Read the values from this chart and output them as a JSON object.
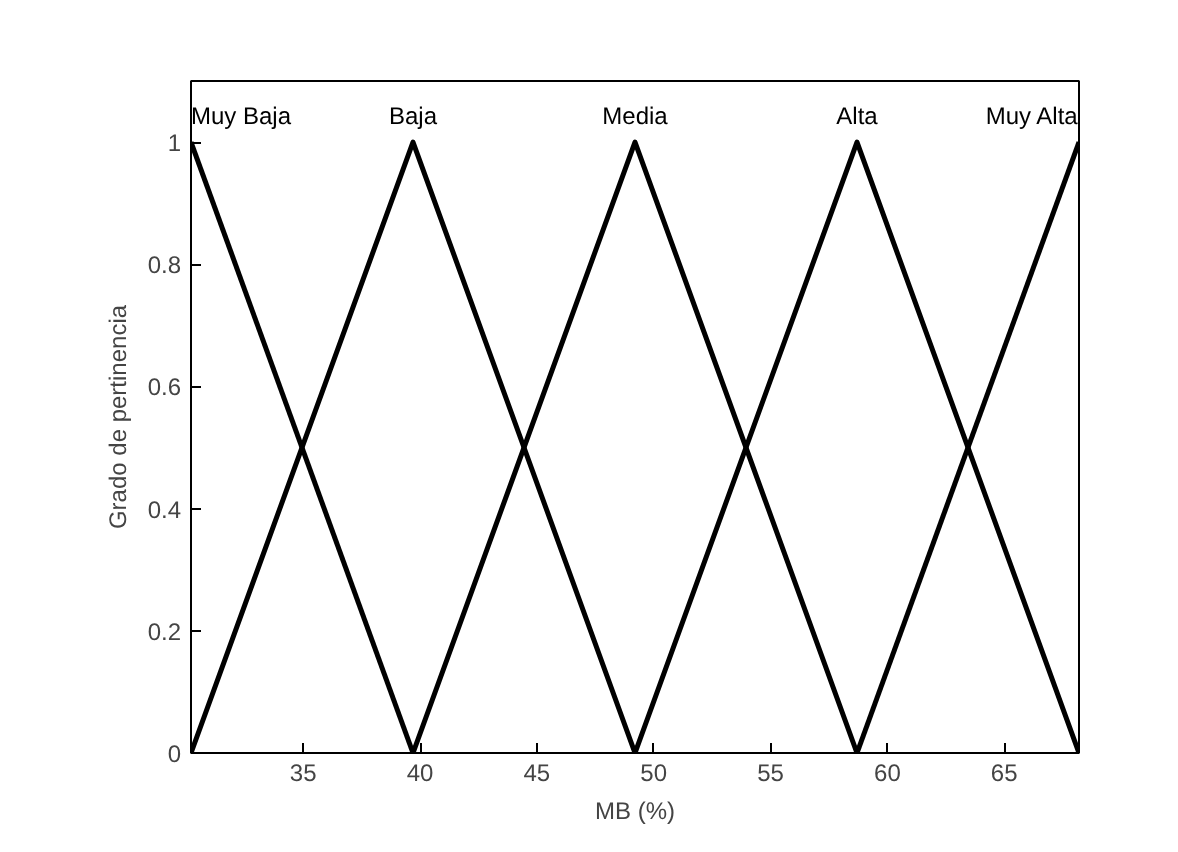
{
  "chart_data": {
    "type": "line",
    "xlabel": "MB (%)",
    "ylabel": "Grado de pertinencia",
    "xlim": [
      30.2,
      68.2
    ],
    "ylim": [
      0,
      1.1
    ],
    "xticks": [
      35,
      40,
      45,
      50,
      55,
      60,
      65
    ],
    "yticks": [
      0,
      0.2,
      0.4,
      0.6,
      0.8,
      1
    ],
    "grid": false,
    "legend": false,
    "marker": "none",
    "line_style": "solid",
    "series": [
      {
        "name": "Muy Baja",
        "color": "#000000",
        "x": [
          30.2,
          39.7
        ],
        "values": [
          1,
          0
        ]
      },
      {
        "name": "Baja",
        "color": "#000000",
        "x": [
          30.2,
          39.7,
          49.2
        ],
        "values": [
          0,
          1,
          0
        ]
      },
      {
        "name": "Media",
        "color": "#000000",
        "x": [
          39.7,
          49.2,
          58.7
        ],
        "values": [
          0,
          1,
          0
        ]
      },
      {
        "name": "Alta",
        "color": "#000000",
        "x": [
          49.2,
          58.7,
          68.2
        ],
        "values": [
          0,
          1,
          0
        ]
      },
      {
        "name": "Muy Alta",
        "color": "#000000",
        "x": [
          58.7,
          68.2
        ],
        "values": [
          0,
          1
        ]
      }
    ]
  }
}
